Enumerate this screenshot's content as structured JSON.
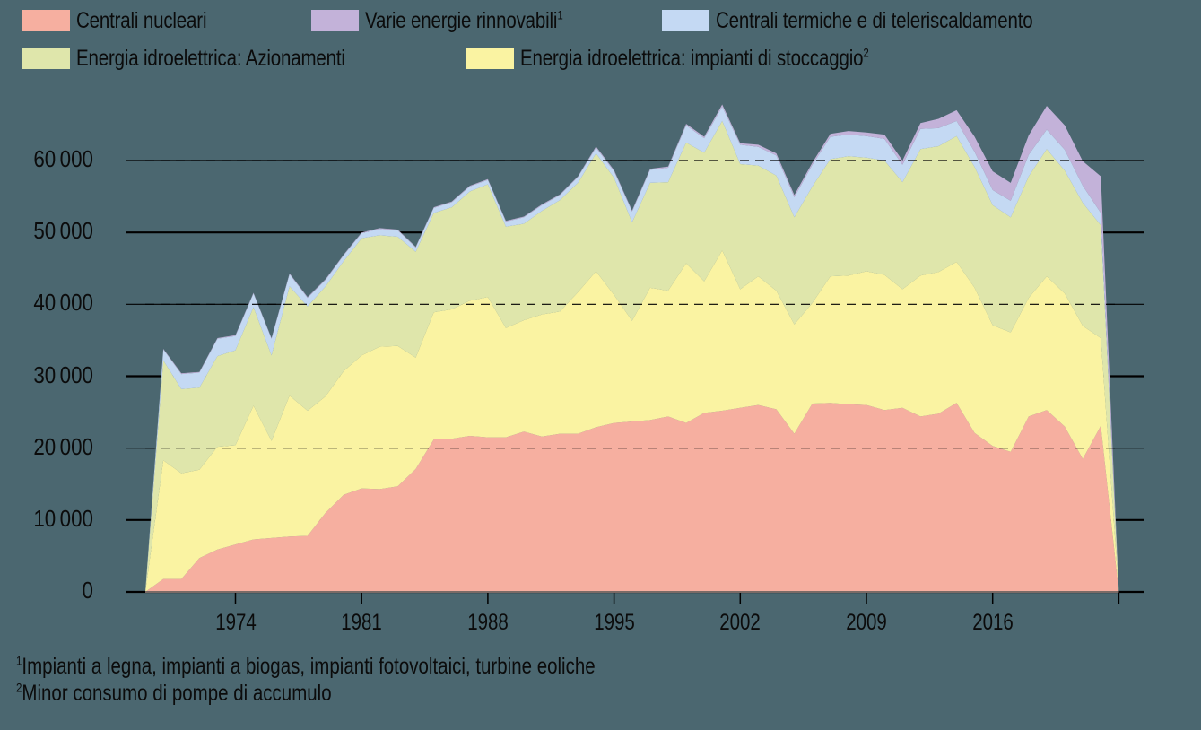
{
  "legend": {
    "items": [
      {
        "label": "Centrali nucleari",
        "sup": "",
        "color": "#f6afa0"
      },
      {
        "label": "Varie energie rinnovabili",
        "sup": "1",
        "color": "#c3b2d9"
      },
      {
        "label": "Centrali termiche e di teleriscaldamento",
        "sup": "",
        "color": "#c4d9f3"
      },
      {
        "label": "Energia idroelettrica: Azionamenti",
        "sup": "",
        "color": "#dfe6ab"
      },
      {
        "label": "Energia idroelettrica: impianti di stoccaggio",
        "sup": "2",
        "color": "#faf3a2"
      }
    ]
  },
  "footnotes": [
    {
      "sup": "1",
      "text": "Impianti a legna, impianti a biogas, impianti fotovoltaici, turbine eoliche"
    },
    {
      "sup": "2",
      "text": "Minor consumo di pompe di accumulo"
    }
  ],
  "colors": {
    "background": "#4b6770",
    "nuclear": "#f6afa0",
    "storage": "#faf3a2",
    "run_of_river": "#dfe6ab",
    "thermal": "#c4d9f3",
    "renewables": "#c3b2d9",
    "grid": "#000000"
  },
  "chart_data": {
    "type": "area",
    "stacked": true,
    "title": "",
    "xlabel": "",
    "ylabel": "",
    "ylim": [
      0,
      60000
    ],
    "yticks": [
      0,
      10000,
      20000,
      30000,
      40000,
      50000,
      60000
    ],
    "ytick_labels": [
      "0",
      "10000",
      "20000",
      "30000",
      "40000",
      "50000",
      "60000"
    ],
    "xticks": [
      1974,
      1981,
      1988,
      1995,
      2002,
      2009,
      2016,
      2023
    ],
    "xtick_labels": [
      "1974",
      "1981",
      "1988",
      "1995",
      "2002",
      "2009",
      "2016",
      ""
    ],
    "xlim": [
      1969,
      2023
    ],
    "grid": true,
    "legend_position": "top",
    "x": [
      1969,
      1970,
      1971,
      1972,
      1973,
      1974,
      1975,
      1976,
      1977,
      1978,
      1979,
      1980,
      1981,
      1982,
      1983,
      1984,
      1985,
      1986,
      1987,
      1988,
      1989,
      1990,
      1991,
      1992,
      1993,
      1994,
      1995,
      1996,
      1997,
      1998,
      1999,
      2000,
      2001,
      2002,
      2003,
      2004,
      2005,
      2006,
      2007,
      2008,
      2009,
      2010,
      2011,
      2012,
      2013,
      2014,
      2015,
      2016,
      2017,
      2018,
      2019,
      2020,
      2021,
      2022,
      2023
    ],
    "series": [
      {
        "name": "Centrali nucleari",
        "key": "nuclear",
        "values": [
          0,
          1800,
          1800,
          4700,
          5900,
          6600,
          7300,
          7500,
          7700,
          7800,
          11000,
          13500,
          14400,
          14300,
          14700,
          17100,
          21200,
          21300,
          21700,
          21500,
          21500,
          22300,
          21600,
          22000,
          22000,
          22900,
          23500,
          23700,
          23900,
          24400,
          23500,
          24900,
          25200,
          25600,
          26000,
          25400,
          22000,
          26200,
          26300,
          26100,
          26000,
          25300,
          25600,
          24400,
          24800,
          26300,
          22100,
          20300,
          19500,
          24400,
          25300,
          23000,
          18500,
          23100,
          0
        ]
      },
      {
        "name": "Energia idroelettrica: impianti di stoccaggio",
        "key": "storage",
        "values": [
          0,
          16500,
          14700,
          12300,
          14300,
          13800,
          18600,
          13500,
          19600,
          17400,
          16200,
          17200,
          18500,
          19800,
          19500,
          15500,
          17700,
          18000,
          18800,
          19500,
          15200,
          15500,
          17000,
          17000,
          19700,
          21700,
          17800,
          14000,
          18400,
          17500,
          22200,
          18300,
          22300,
          16500,
          17900,
          16500,
          15200,
          14000,
          17600,
          17900,
          18600,
          18800,
          16500,
          19600,
          19700,
          19600,
          20200,
          16800,
          16600,
          16500,
          18600,
          18500,
          18500,
          12200,
          0
        ]
      },
      {
        "name": "Energia idroelettrica: Azionamenti",
        "key": "run_of_river",
        "values": [
          0,
          13900,
          11700,
          11400,
          12600,
          13200,
          13700,
          11900,
          15200,
          14500,
          15300,
          15300,
          16300,
          15500,
          15200,
          14700,
          13800,
          14200,
          15200,
          15700,
          14100,
          13400,
          14400,
          15500,
          15200,
          16400,
          16300,
          13700,
          14600,
          15100,
          16800,
          17900,
          18000,
          17400,
          15400,
          16000,
          14900,
          16200,
          16300,
          16600,
          15800,
          15900,
          14900,
          17600,
          17500,
          17500,
          16800,
          16700,
          16000,
          16900,
          17700,
          17100,
          17100,
          15700,
          0
        ]
      },
      {
        "name": "Centrali termiche e di teleriscaldamento",
        "key": "thermal",
        "values": [
          0,
          1500,
          2100,
          2100,
          2400,
          2000,
          1900,
          2300,
          1700,
          1200,
          900,
          800,
          700,
          900,
          900,
          600,
          700,
          700,
          700,
          600,
          700,
          900,
          800,
          700,
          800,
          800,
          900,
          1500,
          1800,
          2000,
          2400,
          2000,
          2000,
          2700,
          2600,
          2800,
          2800,
          3000,
          3100,
          3000,
          3000,
          3000,
          2400,
          2800,
          2500,
          2100,
          2100,
          2100,
          2300,
          3000,
          2700,
          2900,
          2400,
          1700,
          0
        ]
      },
      {
        "name": "Varie energie rinnovabili",
        "key": "renewables",
        "values": [
          0,
          100,
          100,
          100,
          100,
          100,
          100,
          100,
          100,
          100,
          100,
          100,
          100,
          100,
          100,
          100,
          100,
          100,
          100,
          100,
          100,
          100,
          100,
          100,
          100,
          150,
          150,
          150,
          150,
          150,
          200,
          200,
          300,
          200,
          300,
          300,
          300,
          300,
          400,
          500,
          500,
          600,
          600,
          800,
          1300,
          1500,
          2100,
          2600,
          2500,
          2700,
          3300,
          3400,
          3400,
          5100,
          0
        ]
      }
    ]
  }
}
